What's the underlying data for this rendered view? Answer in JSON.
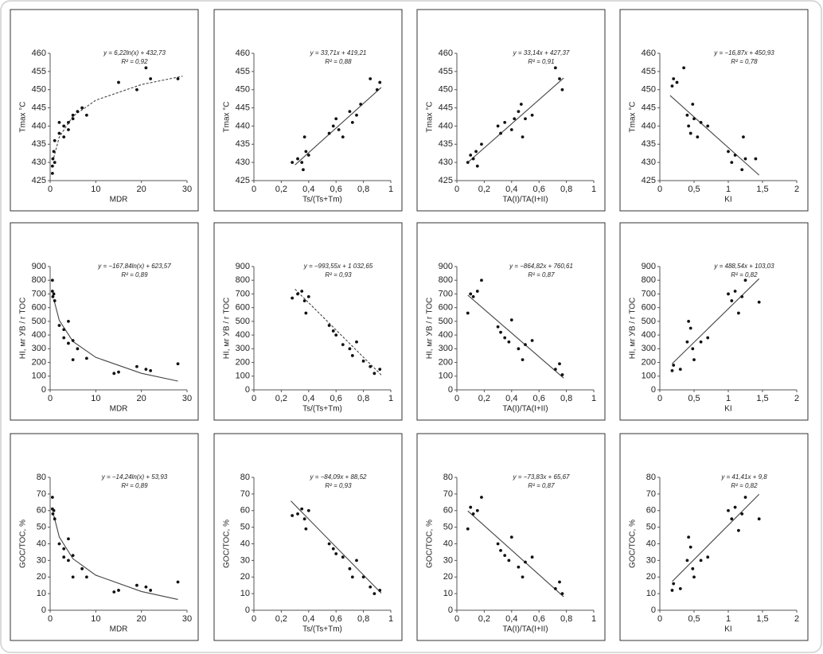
{
  "chart_data": [
    {
      "type": "scatter",
      "equation": "y = 6,22ln(x) + 432,73",
      "r2": "R² = 0,92",
      "x_label": "MDR",
      "y_label": "Tmax °C",
      "xlim": [
        0,
        30
      ],
      "ylim": [
        425,
        460
      ],
      "xticks": [
        0,
        10,
        20,
        30
      ],
      "yticks": [
        425,
        430,
        435,
        440,
        445,
        450,
        455,
        460
      ],
      "points": {
        "color": "#111111",
        "x": [
          0.5,
          0.5,
          0.6,
          0.8,
          1,
          1,
          2,
          2,
          3,
          3,
          4,
          4,
          5,
          5,
          6,
          7,
          8,
          15,
          19,
          21,
          22,
          28
        ],
        "y": [
          427,
          429,
          431,
          433,
          430,
          436,
          438,
          441,
          440,
          437,
          441,
          439,
          443,
          442,
          444,
          445,
          443,
          452,
          450,
          456,
          453,
          453
        ]
      },
      "fit": {
        "color": "#444444",
        "dashed": true,
        "x": [
          0.8,
          2,
          5,
          10,
          20,
          29
        ],
        "y": [
          431.3,
          437,
          442.7,
          447.1,
          451.4,
          453.7
        ]
      }
    },
    {
      "type": "scatter",
      "equation": "y = 33,71x + 419,21",
      "r2": "R² = 0,88",
      "x_label": "Ts/(Ts+Tm)",
      "y_label": "Tmax °C",
      "xlim": [
        0,
        1
      ],
      "ylim": [
        425,
        460
      ],
      "xticks": [
        0,
        {
          "value": 0.2,
          "label": "0,2"
        },
        {
          "value": 0.4,
          "label": "0,4"
        },
        {
          "value": 0.6,
          "label": "0,6"
        },
        {
          "value": 0.8,
          "label": "0,8"
        },
        1
      ],
      "yticks": [
        425,
        430,
        435,
        440,
        445,
        450,
        455,
        460
      ],
      "points": {
        "color": "#111111",
        "x": [
          0.28,
          0.32,
          0.35,
          0.36,
          0.38,
          0.37,
          0.4,
          0.55,
          0.58,
          0.6,
          0.62,
          0.65,
          0.7,
          0.72,
          0.75,
          0.78,
          0.85,
          0.9,
          0.92
        ],
        "y": [
          430,
          431,
          430,
          428,
          433,
          437,
          432,
          438,
          440,
          442,
          439,
          437,
          444,
          441,
          443,
          446,
          453,
          450,
          452
        ]
      },
      "fit": {
        "color": "#444444",
        "dashed": false,
        "x": [
          0.3,
          0.93
        ],
        "y": [
          429.3,
          450.6
        ]
      }
    },
    {
      "type": "scatter",
      "equation": "y = 33,14x + 427,37",
      "r2": "R² = 0,91",
      "x_label": "TA(I)/TA(I+II)",
      "y_label": "Tmax °C",
      "xlim": [
        0,
        1
      ],
      "ylim": [
        425,
        460
      ],
      "xticks": [
        0,
        {
          "value": 0.2,
          "label": "0,2"
        },
        {
          "value": 0.4,
          "label": "0,4"
        },
        {
          "value": 0.6,
          "label": "0,6"
        },
        {
          "value": 0.8,
          "label": "0,8"
        },
        1
      ],
      "yticks": [
        425,
        430,
        435,
        440,
        445,
        450,
        455,
        460
      ],
      "points": {
        "color": "#111111",
        "x": [
          0.08,
          0.1,
          0.12,
          0.14,
          0.15,
          0.18,
          0.3,
          0.32,
          0.35,
          0.4,
          0.42,
          0.45,
          0.47,
          0.48,
          0.5,
          0.55,
          0.72,
          0.75,
          0.77
        ],
        "y": [
          430,
          432,
          431,
          433,
          429,
          435,
          440,
          438,
          441,
          439,
          442,
          444,
          446,
          437,
          442,
          443,
          456,
          453,
          450
        ]
      },
      "fit": {
        "color": "#444444",
        "dashed": false,
        "x": [
          0.08,
          0.78
        ],
        "y": [
          430,
          453.2
        ]
      }
    },
    {
      "type": "scatter",
      "equation": "y = −16,87x + 450,93",
      "r2": "R² = 0,78",
      "x_label": "KI",
      "y_label": "Tmax °C",
      "xlim": [
        0,
        2
      ],
      "ylim": [
        425,
        460
      ],
      "xticks": [
        0,
        {
          "value": 0.5,
          "label": "0,5"
        },
        1,
        {
          "value": 1.5,
          "label": "1,5"
        },
        2
      ],
      "yticks": [
        425,
        430,
        435,
        440,
        445,
        450,
        455,
        460
      ],
      "points": {
        "color": "#111111",
        "x": [
          0.18,
          0.2,
          0.25,
          0.35,
          0.4,
          0.42,
          0.45,
          0.48,
          0.5,
          0.55,
          0.6,
          0.7,
          1.0,
          1.05,
          1.1,
          1.2,
          1.22,
          1.25,
          1.4
        ],
        "y": [
          451,
          453,
          452,
          456,
          443,
          440,
          438,
          446,
          442,
          437,
          441,
          440,
          433,
          430,
          432,
          428,
          437,
          431,
          431
        ]
      },
      "fit": {
        "color": "#444444",
        "dashed": false,
        "x": [
          0.15,
          1.45
        ],
        "y": [
          448.4,
          426.5
        ]
      }
    },
    {
      "type": "scatter",
      "equation": "y = −167,84ln(x) + 623,57",
      "r2": "R² = 0,89",
      "x_label": "MDR",
      "y_label": "HI, мг УВ / г TOC",
      "xlim": [
        0,
        30
      ],
      "ylim": [
        0,
        900
      ],
      "xticks": [
        0,
        10,
        20,
        30
      ],
      "yticks": [
        0,
        100,
        200,
        300,
        400,
        500,
        600,
        700,
        800,
        900
      ],
      "points": {
        "color": "#111111",
        "x": [
          0.5,
          0.5,
          0.6,
          0.8,
          1,
          2,
          3,
          3,
          4,
          4,
          5,
          5,
          6,
          8,
          14,
          15,
          19,
          21,
          22,
          28
        ],
        "y": [
          800,
          720,
          680,
          700,
          650,
          470,
          440,
          380,
          500,
          340,
          360,
          220,
          300,
          230,
          120,
          130,
          170,
          150,
          140,
          190
        ]
      },
      "fit": {
        "color": "#444444",
        "dashed": false,
        "x": [
          0.8,
          2,
          5,
          10,
          20,
          28
        ],
        "y": [
          661,
          507,
          353,
          237,
          121,
          64
        ]
      }
    },
    {
      "type": "scatter",
      "equation": "y = −993,55x + 1 032,65",
      "r2": "R² = 0,93",
      "x_label": "Ts/(Ts+Tm)",
      "y_label": "HI, мг УВ / г TOC",
      "xlim": [
        0,
        1
      ],
      "ylim": [
        0,
        900
      ],
      "xticks": [
        0,
        {
          "value": 0.2,
          "label": "0,2"
        },
        {
          "value": 0.4,
          "label": "0,4"
        },
        {
          "value": 0.6,
          "label": "0,6"
        },
        {
          "value": 0.8,
          "label": "0,8"
        },
        1
      ],
      "yticks": [
        0,
        100,
        200,
        300,
        400,
        500,
        600,
        700,
        800,
        900
      ],
      "points": {
        "color": "#111111",
        "x": [
          0.28,
          0.32,
          0.35,
          0.37,
          0.38,
          0.4,
          0.55,
          0.58,
          0.6,
          0.65,
          0.7,
          0.72,
          0.75,
          0.8,
          0.85,
          0.88,
          0.92
        ],
        "y": [
          670,
          700,
          720,
          650,
          560,
          680,
          470,
          430,
          400,
          330,
          300,
          250,
          350,
          210,
          170,
          120,
          150
        ]
      },
      "fit": {
        "color": "#444444",
        "dashed": true,
        "x": [
          0.3,
          0.93
        ],
        "y": [
          735,
          109
        ]
      }
    },
    {
      "type": "scatter",
      "equation": "y = −864,82x + 760,61",
      "r2": "R² = 0,87",
      "x_label": "TA(I)/TA(I+II)",
      "y_label": "HI, мг УВ / г TOC",
      "xlim": [
        0,
        1
      ],
      "ylim": [
        0,
        900
      ],
      "xticks": [
        0,
        {
          "value": 0.2,
          "label": "0,2"
        },
        {
          "value": 0.4,
          "label": "0,4"
        },
        {
          "value": 0.6,
          "label": "0,6"
        },
        {
          "value": 0.8,
          "label": "0,8"
        },
        1
      ],
      "yticks": [
        0,
        100,
        200,
        300,
        400,
        500,
        600,
        700,
        800,
        900
      ],
      "points": {
        "color": "#111111",
        "x": [
          0.08,
          0.1,
          0.12,
          0.15,
          0.18,
          0.3,
          0.32,
          0.35,
          0.38,
          0.4,
          0.45,
          0.48,
          0.5,
          0.55,
          0.72,
          0.75,
          0.77
        ],
        "y": [
          560,
          700,
          680,
          720,
          800,
          460,
          420,
          380,
          350,
          510,
          300,
          220,
          330,
          360,
          150,
          190,
          110
        ]
      },
      "fit": {
        "color": "#444444",
        "dashed": false,
        "x": [
          0.08,
          0.78
        ],
        "y": [
          691,
          86
        ]
      }
    },
    {
      "type": "scatter",
      "equation": "y = 488,54x + 103,03",
      "r2": "R² = 0,82",
      "x_label": "KI",
      "y_label": "HI, мг УВ / г TOC",
      "xlim": [
        0,
        2
      ],
      "ylim": [
        0,
        900
      ],
      "xticks": [
        0,
        {
          "value": 0.5,
          "label": "0,5"
        },
        1,
        {
          "value": 1.5,
          "label": "1,5"
        },
        2
      ],
      "yticks": [
        0,
        100,
        200,
        300,
        400,
        500,
        600,
        700,
        800,
        900
      ],
      "points": {
        "color": "#111111",
        "x": [
          0.18,
          0.2,
          0.3,
          0.4,
          0.42,
          0.45,
          0.48,
          0.5,
          0.6,
          0.7,
          1.0,
          1.05,
          1.1,
          1.15,
          1.2,
          1.25,
          1.45
        ],
        "y": [
          140,
          180,
          150,
          350,
          500,
          450,
          300,
          220,
          350,
          380,
          700,
          650,
          720,
          560,
          680,
          800,
          640
        ]
      },
      "fit": {
        "color": "#444444",
        "dashed": false,
        "x": [
          0.18,
          1.45
        ],
        "y": [
          191,
          811
        ]
      }
    },
    {
      "type": "scatter",
      "equation": "y = −14,24ln(x) + 53,93",
      "r2": "R² = 0,89",
      "x_label": "MDR",
      "y_label": "GOC/TOC, %",
      "xlim": [
        0,
        30
      ],
      "ylim": [
        0,
        80
      ],
      "xticks": [
        0,
        10,
        20,
        30
      ],
      "yticks": [
        0,
        10,
        20,
        30,
        40,
        50,
        60,
        70,
        80
      ],
      "points": {
        "color": "#111111",
        "x": [
          0.5,
          0.5,
          0.6,
          0.8,
          1,
          2,
          3,
          3,
          4,
          4,
          5,
          5,
          7,
          8,
          14,
          15,
          19,
          21,
          22,
          28
        ],
        "y": [
          68,
          61,
          58,
          60,
          55,
          40,
          37,
          32,
          43,
          30,
          33,
          20,
          25,
          20,
          11,
          12,
          15,
          14,
          12,
          17
        ]
      },
      "fit": {
        "color": "#444444",
        "dashed": false,
        "x": [
          0.8,
          2,
          5,
          10,
          20,
          28
        ],
        "y": [
          57.1,
          44.1,
          31,
          21.1,
          11.3,
          6.5
        ]
      }
    },
    {
      "type": "scatter",
      "equation": "y = −84,09x + 88,52",
      "r2": "R² = 0,93",
      "x_label": "Ts/(Ts+Tm)",
      "y_label": "GOC/TOC, %",
      "xlim": [
        0,
        1
      ],
      "ylim": [
        0,
        80
      ],
      "xticks": [
        0,
        {
          "value": 0.2,
          "label": "0,2"
        },
        {
          "value": 0.4,
          "label": "0,4"
        },
        {
          "value": 0.6,
          "label": "0,6"
        },
        {
          "value": 0.8,
          "label": "0,8"
        },
        1
      ],
      "yticks": [
        0,
        10,
        20,
        30,
        40,
        50,
        60,
        70,
        80
      ],
      "points": {
        "color": "#111111",
        "x": [
          0.28,
          0.32,
          0.35,
          0.37,
          0.38,
          0.4,
          0.55,
          0.58,
          0.6,
          0.65,
          0.7,
          0.72,
          0.75,
          0.8,
          0.85,
          0.88,
          0.92
        ],
        "y": [
          57,
          58,
          61,
          55,
          49,
          60,
          40,
          37,
          34,
          32,
          25,
          20,
          30,
          20,
          14,
          10,
          12
        ]
      },
      "fit": {
        "color": "#444444",
        "dashed": false,
        "x": [
          0.27,
          0.93
        ],
        "y": [
          65.8,
          10.3
        ]
      }
    },
    {
      "type": "scatter",
      "equation": "y = −73,83x + 65,67",
      "r2": "R² = 0,87",
      "x_label": "TA(I)/TA(I+II)",
      "y_label": "GOC/TOC, %",
      "xlim": [
        0,
        1
      ],
      "ylim": [
        0,
        80
      ],
      "xticks": [
        0,
        {
          "value": 0.2,
          "label": "0,2"
        },
        {
          "value": 0.4,
          "label": "0,4"
        },
        {
          "value": 0.6,
          "label": "0,6"
        },
        {
          "value": 0.8,
          "label": "0,8"
        },
        1
      ],
      "yticks": [
        0,
        10,
        20,
        30,
        40,
        50,
        60,
        70,
        80
      ],
      "points": {
        "color": "#111111",
        "x": [
          0.08,
          0.1,
          0.12,
          0.15,
          0.18,
          0.3,
          0.32,
          0.35,
          0.38,
          0.4,
          0.45,
          0.48,
          0.5,
          0.55,
          0.72,
          0.75,
          0.77
        ],
        "y": [
          49,
          62,
          58,
          60,
          68,
          40,
          36,
          33,
          30,
          44,
          26,
          20,
          29,
          32,
          13,
          17,
          10
        ]
      },
      "fit": {
        "color": "#444444",
        "dashed": false,
        "x": [
          0.08,
          0.78
        ],
        "y": [
          59.8,
          8.1
        ]
      }
    },
    {
      "type": "scatter",
      "equation": "y = 41,41x + 9,8",
      "r2": "R² = 0,82",
      "x_label": "KI",
      "y_label": "GOC/TOC, %",
      "xlim": [
        0,
        2
      ],
      "ylim": [
        0,
        80
      ],
      "xticks": [
        0,
        {
          "value": 0.5,
          "label": "0,5"
        },
        1,
        {
          "value": 1.5,
          "label": "1,5"
        },
        2
      ],
      "yticks": [
        0,
        10,
        20,
        30,
        40,
        50,
        60,
        70,
        80
      ],
      "points": {
        "color": "#111111",
        "x": [
          0.18,
          0.2,
          0.3,
          0.4,
          0.42,
          0.45,
          0.48,
          0.5,
          0.6,
          0.7,
          1.0,
          1.05,
          1.1,
          1.15,
          1.2,
          1.25,
          1.45
        ],
        "y": [
          12,
          16,
          13,
          30,
          44,
          38,
          25,
          20,
          30,
          32,
          60,
          55,
          62,
          48,
          58,
          68,
          55
        ]
      },
      "fit": {
        "color": "#444444",
        "dashed": false,
        "x": [
          0.18,
          1.45
        ],
        "y": [
          17.3,
          69.8
        ]
      }
    }
  ]
}
